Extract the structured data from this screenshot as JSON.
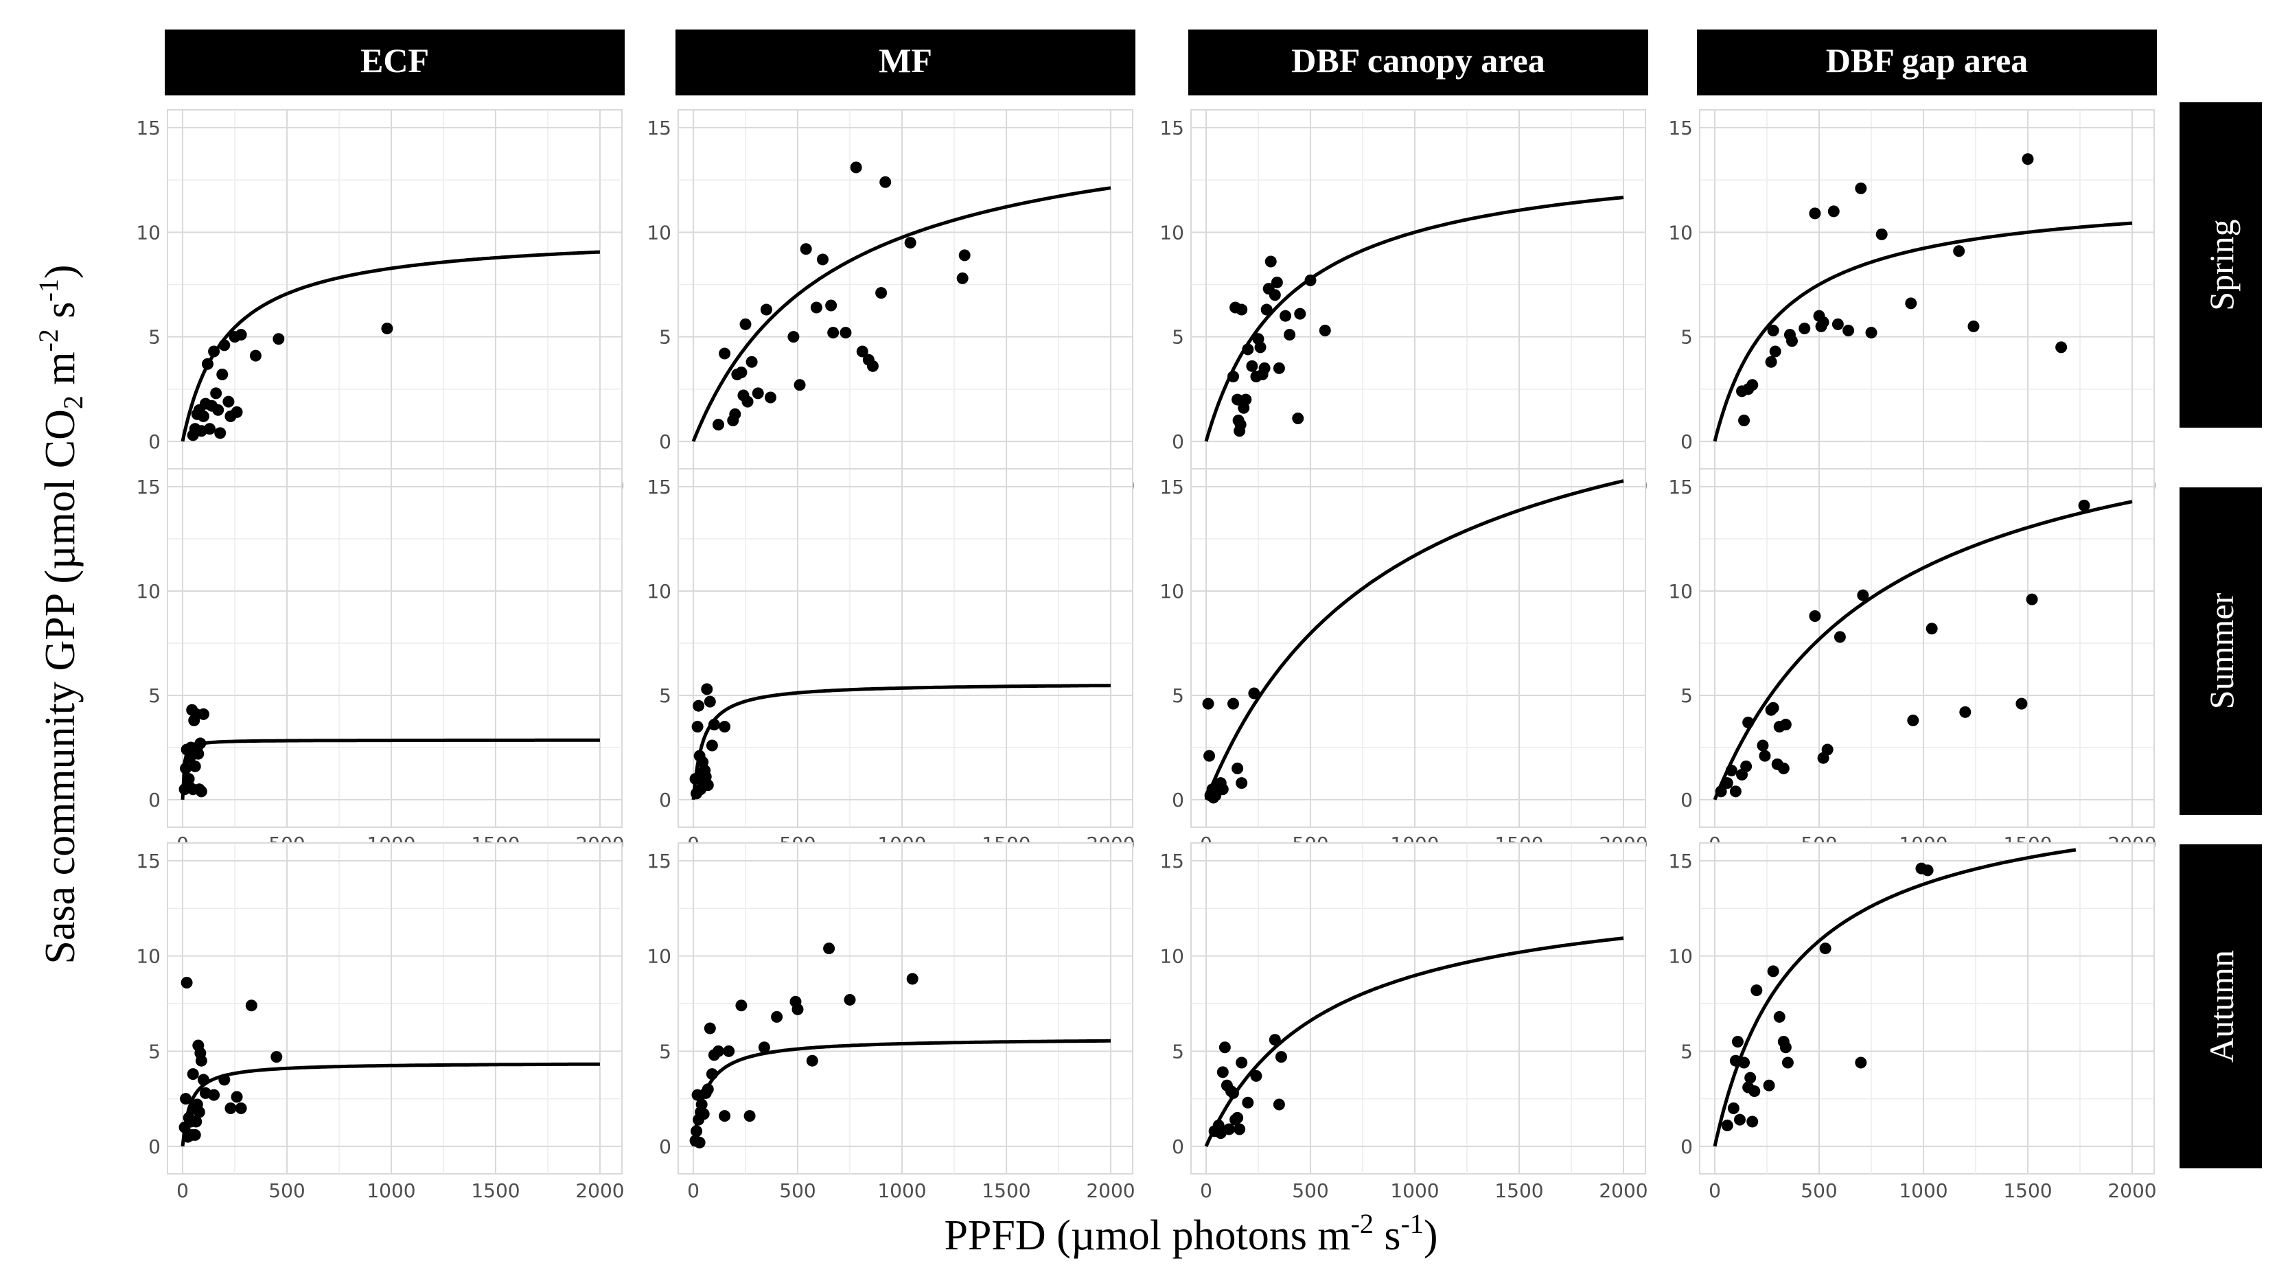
{
  "figure": {
    "y_axis_label": {
      "prefix": "Sasa community GPP (µmol CO",
      "sub": "2",
      "mid1": " m",
      "sup1": "-2",
      "mid2": " s",
      "sup2": "-1",
      "suffix": ")"
    },
    "x_axis_label": {
      "prefix": "PPFD (µmol photons m",
      "sup1": "-2",
      "mid": " s",
      "sup2": "-1",
      "suffix": ")"
    },
    "column_labels": [
      "ECF",
      "MF",
      "DBF canopy area",
      "DBF gap area"
    ],
    "row_labels": [
      "Spring",
      "Summer",
      "Autumn"
    ],
    "x_ticks": [
      "0",
      "500",
      "1000",
      "1500",
      "2000"
    ],
    "y_ticks": [
      "0",
      "5",
      "10",
      "15"
    ],
    "strip_color": "#000000",
    "grid_color": "#d9d9d9",
    "point_color": "#000000",
    "curve_color": "#000000"
  },
  "chart_data": [
    {
      "type": "scatter",
      "row": "Spring",
      "column": "ECF",
      "xlim": [
        0,
        2000
      ],
      "ylim": [
        0,
        15
      ],
      "curve_x_max": 2000,
      "fit": {
        "a": 0.048,
        "pmax": 10.0
      },
      "points": [
        [
          50,
          0.3
        ],
        [
          60,
          0.6
        ],
        [
          70,
          1.3
        ],
        [
          80,
          1.5
        ],
        [
          90,
          0.5
        ],
        [
          100,
          1.2
        ],
        [
          110,
          1.8
        ],
        [
          120,
          3.7
        ],
        [
          130,
          0.6
        ],
        [
          140,
          1.7
        ],
        [
          150,
          4.3
        ],
        [
          160,
          2.3
        ],
        [
          170,
          1.5
        ],
        [
          180,
          0.4
        ],
        [
          190,
          3.2
        ],
        [
          200,
          4.6
        ],
        [
          220,
          1.9
        ],
        [
          230,
          1.2
        ],
        [
          250,
          5.0
        ],
        [
          260,
          1.4
        ],
        [
          280,
          5.1
        ],
        [
          350,
          4.1
        ],
        [
          460,
          4.9
        ],
        [
          980,
          5.4
        ]
      ]
    },
    {
      "type": "scatter",
      "row": "Spring",
      "column": "MF",
      "xlim": [
        0,
        2000
      ],
      "ylim": [
        0,
        15
      ],
      "curve_x_max": 2000,
      "fit": {
        "a": 0.025,
        "pmax": 16.0
      },
      "points": [
        [
          120,
          0.8
        ],
        [
          150,
          4.2
        ],
        [
          190,
          1.0
        ],
        [
          200,
          1.3
        ],
        [
          210,
          3.2
        ],
        [
          230,
          3.3
        ],
        [
          240,
          2.2
        ],
        [
          250,
          5.6
        ],
        [
          260,
          1.9
        ],
        [
          280,
          3.8
        ],
        [
          310,
          2.3
        ],
        [
          350,
          6.3
        ],
        [
          370,
          2.1
        ],
        [
          480,
          5.0
        ],
        [
          510,
          2.7
        ],
        [
          540,
          9.2
        ],
        [
          590,
          6.4
        ],
        [
          620,
          8.7
        ],
        [
          660,
          6.5
        ],
        [
          670,
          5.2
        ],
        [
          730,
          5.2
        ],
        [
          780,
          13.1
        ],
        [
          810,
          4.3
        ],
        [
          840,
          3.9
        ],
        [
          860,
          3.6
        ],
        [
          900,
          7.1
        ],
        [
          920,
          12.4
        ],
        [
          1040,
          9.5
        ],
        [
          1290,
          7.8
        ],
        [
          1300,
          8.9
        ]
      ]
    },
    {
      "type": "scatter",
      "row": "Spring",
      "column": "DBF canopy area",
      "xlim": [
        0,
        2000
      ],
      "ylim": [
        0,
        15
      ],
      "curve_x_max": 2000,
      "fit": {
        "a": 0.035,
        "pmax": 14.0
      },
      "points": [
        [
          130,
          3.1
        ],
        [
          140,
          6.4
        ],
        [
          150,
          2.0
        ],
        [
          155,
          1.0
        ],
        [
          160,
          0.5
        ],
        [
          165,
          0.8
        ],
        [
          170,
          6.3
        ],
        [
          180,
          1.6
        ],
        [
          190,
          2.0
        ],
        [
          200,
          4.4
        ],
        [
          220,
          3.6
        ],
        [
          240,
          3.1
        ],
        [
          250,
          4.9
        ],
        [
          260,
          4.5
        ],
        [
          270,
          3.2
        ],
        [
          280,
          3.5
        ],
        [
          290,
          6.3
        ],
        [
          300,
          7.3
        ],
        [
          310,
          8.6
        ],
        [
          330,
          7.0
        ],
        [
          340,
          7.6
        ],
        [
          350,
          3.5
        ],
        [
          380,
          6.0
        ],
        [
          400,
          5.1
        ],
        [
          440,
          1.1
        ],
        [
          450,
          6.1
        ],
        [
          500,
          7.7
        ],
        [
          570,
          5.3
        ]
      ]
    },
    {
      "type": "scatter",
      "row": "Spring",
      "column": "DBF gap area",
      "xlim": [
        0,
        2000
      ],
      "ylim": [
        0,
        15
      ],
      "curve_x_max": 2000,
      "fit": {
        "a": 0.04,
        "pmax": 12.0
      },
      "points": [
        [
          130,
          2.4
        ],
        [
          140,
          1.0
        ],
        [
          160,
          2.5
        ],
        [
          180,
          2.7
        ],
        [
          270,
          3.8
        ],
        [
          280,
          5.3
        ],
        [
          290,
          4.3
        ],
        [
          360,
          5.1
        ],
        [
          370,
          4.8
        ],
        [
          430,
          5.4
        ],
        [
          480,
          10.9
        ],
        [
          500,
          6.0
        ],
        [
          510,
          5.5
        ],
        [
          520,
          5.7
        ],
        [
          570,
          11.0
        ],
        [
          590,
          5.6
        ],
        [
          640,
          5.3
        ],
        [
          700,
          12.1
        ],
        [
          750,
          5.2
        ],
        [
          800,
          9.9
        ],
        [
          940,
          6.6
        ],
        [
          1170,
          9.1
        ],
        [
          1240,
          5.5
        ],
        [
          1500,
          13.5
        ],
        [
          1660,
          4.5
        ]
      ]
    },
    {
      "type": "scatter",
      "row": "Summer",
      "column": "ECF",
      "xlim": [
        0,
        2000
      ],
      "ylim": [
        0,
        15
      ],
      "curve_x_max": 2000,
      "fit": {
        "a": 0.5,
        "pmax": 2.86
      },
      "points": [
        [
          10,
          0.5
        ],
        [
          15,
          1.5
        ],
        [
          20,
          2.4
        ],
        [
          25,
          0.8
        ],
        [
          30,
          1.0
        ],
        [
          35,
          2.0
        ],
        [
          40,
          2.5
        ],
        [
          45,
          4.3
        ],
        [
          50,
          0.5
        ],
        [
          55,
          3.8
        ],
        [
          60,
          1.6
        ],
        [
          65,
          4.1
        ],
        [
          70,
          2.5
        ],
        [
          75,
          2.2
        ],
        [
          80,
          0.5
        ],
        [
          85,
          2.7
        ],
        [
          90,
          0.4
        ],
        [
          100,
          4.1
        ]
      ]
    },
    {
      "type": "scatter",
      "row": "Summer",
      "column": "MF",
      "xlim": [
        0,
        2000
      ],
      "ylim": [
        0,
        15
      ],
      "curve_x_max": 2000,
      "fit": {
        "a": 0.12,
        "pmax": 5.6
      },
      "points": [
        [
          10,
          1.0
        ],
        [
          15,
          0.3
        ],
        [
          20,
          3.5
        ],
        [
          25,
          4.5
        ],
        [
          30,
          2.1
        ],
        [
          35,
          0.5
        ],
        [
          40,
          1.3
        ],
        [
          45,
          1.8
        ],
        [
          50,
          0.8
        ],
        [
          55,
          1.4
        ],
        [
          60,
          1.1
        ],
        [
          65,
          5.3
        ],
        [
          70,
          0.7
        ],
        [
          80,
          4.7
        ],
        [
          90,
          2.6
        ],
        [
          100,
          3.6
        ],
        [
          150,
          3.5
        ]
      ]
    },
    {
      "type": "scatter",
      "row": "Summer",
      "column": "DBF canopy area",
      "xlim": [
        0,
        2000
      ],
      "ylim": [
        0,
        15
      ],
      "curve_x_max": 2000,
      "fit": {
        "a": 0.025,
        "pmax": 22.0
      },
      "points": [
        [
          10,
          4.6
        ],
        [
          15,
          2.1
        ],
        [
          20,
          0.2
        ],
        [
          25,
          0.3
        ],
        [
          30,
          0.5
        ],
        [
          35,
          0.1
        ],
        [
          40,
          0.4
        ],
        [
          45,
          0.2
        ],
        [
          50,
          0.6
        ],
        [
          60,
          0.7
        ],
        [
          70,
          0.8
        ],
        [
          80,
          0.5
        ],
        [
          130,
          4.6
        ],
        [
          150,
          1.5
        ],
        [
          170,
          0.8
        ],
        [
          230,
          5.1
        ]
      ]
    },
    {
      "type": "scatter",
      "row": "Summer",
      "column": "DBF gap area",
      "xlim": [
        0,
        2000
      ],
      "ylim": [
        0,
        15
      ],
      "curve_x_max": 2000,
      "fit": {
        "a": 0.025,
        "pmax": 20.0
      },
      "points": [
        [
          30,
          0.4
        ],
        [
          60,
          0.8
        ],
        [
          80,
          1.4
        ],
        [
          100,
          0.4
        ],
        [
          130,
          1.2
        ],
        [
          150,
          1.6
        ],
        [
          160,
          3.7
        ],
        [
          230,
          2.6
        ],
        [
          240,
          2.1
        ],
        [
          270,
          4.3
        ],
        [
          280,
          4.4
        ],
        [
          300,
          1.7
        ],
        [
          310,
          3.5
        ],
        [
          330,
          1.5
        ],
        [
          340,
          3.6
        ],
        [
          480,
          8.8
        ],
        [
          520,
          2.0
        ],
        [
          540,
          2.4
        ],
        [
          600,
          7.8
        ],
        [
          710,
          9.8
        ],
        [
          950,
          3.8
        ],
        [
          1040,
          8.2
        ],
        [
          1200,
          4.2
        ],
        [
          1470,
          4.6
        ],
        [
          1520,
          9.6
        ],
        [
          1770,
          14.1
        ]
      ]
    },
    {
      "type": "scatter",
      "row": "Autumn",
      "column": "ECF",
      "xlim": [
        0,
        2000
      ],
      "ylim": [
        0,
        15
      ],
      "curve_x_max": 2000,
      "fit": {
        "a": 0.12,
        "pmax": 4.4
      },
      "points": [
        [
          10,
          1.0
        ],
        [
          15,
          2.5
        ],
        [
          20,
          8.6
        ],
        [
          25,
          0.5
        ],
        [
          30,
          1.5
        ],
        [
          35,
          0.6
        ],
        [
          40,
          1.3
        ],
        [
          45,
          0.6
        ],
        [
          50,
          3.8
        ],
        [
          55,
          2.0
        ],
        [
          60,
          0.6
        ],
        [
          65,
          1.3
        ],
        [
          70,
          2.2
        ],
        [
          75,
          5.3
        ],
        [
          80,
          1.8
        ],
        [
          85,
          4.9
        ],
        [
          90,
          4.5
        ],
        [
          100,
          3.5
        ],
        [
          110,
          2.8
        ],
        [
          150,
          2.7
        ],
        [
          200,
          3.5
        ],
        [
          230,
          2.0
        ],
        [
          260,
          2.6
        ],
        [
          280,
          2.0
        ],
        [
          330,
          7.4
        ],
        [
          450,
          4.7
        ]
      ]
    },
    {
      "type": "scatter",
      "row": "Autumn",
      "column": "MF",
      "xlim": [
        0,
        2000
      ],
      "ylim": [
        0,
        15
      ],
      "curve_x_max": 2000,
      "fit": {
        "a": 0.1,
        "pmax": 5.7
      },
      "points": [
        [
          10,
          0.3
        ],
        [
          15,
          0.8
        ],
        [
          20,
          2.7
        ],
        [
          25,
          1.4
        ],
        [
          30,
          0.2
        ],
        [
          35,
          1.8
        ],
        [
          40,
          2.2
        ],
        [
          50,
          1.7
        ],
        [
          60,
          2.8
        ],
        [
          70,
          3.0
        ],
        [
          80,
          6.2
        ],
        [
          90,
          3.8
        ],
        [
          100,
          4.8
        ],
        [
          120,
          5.0
        ],
        [
          150,
          1.6
        ],
        [
          170,
          5.0
        ],
        [
          230,
          7.4
        ],
        [
          270,
          1.6
        ],
        [
          340,
          5.2
        ],
        [
          400,
          6.8
        ],
        [
          490,
          7.6
        ],
        [
          500,
          7.2
        ],
        [
          570,
          4.5
        ],
        [
          650,
          10.4
        ],
        [
          750,
          7.7
        ],
        [
          1050,
          8.8
        ]
      ]
    },
    {
      "type": "scatter",
      "row": "Autumn",
      "column": "DBF canopy area",
      "xlim": [
        0,
        2000
      ],
      "ylim": [
        0,
        15
      ],
      "curve_x_max": 2000,
      "fit": {
        "a": 0.025,
        "pmax": 14.0
      },
      "points": [
        [
          40,
          0.8
        ],
        [
          60,
          1.1
        ],
        [
          70,
          0.7
        ],
        [
          80,
          3.9
        ],
        [
          90,
          5.2
        ],
        [
          100,
          3.2
        ],
        [
          110,
          0.9
        ],
        [
          120,
          2.9
        ],
        [
          130,
          2.8
        ],
        [
          140,
          1.4
        ],
        [
          150,
          1.5
        ],
        [
          160,
          0.9
        ],
        [
          170,
          4.4
        ],
        [
          200,
          2.3
        ],
        [
          240,
          3.7
        ],
        [
          330,
          5.6
        ],
        [
          350,
          2.2
        ],
        [
          360,
          4.7
        ]
      ]
    },
    {
      "type": "scatter",
      "row": "Autumn",
      "column": "DBF gap area",
      "xlim": [
        0,
        2000
      ],
      "ylim": [
        0,
        15
      ],
      "curve_x_max": 1730,
      "fit": {
        "a": 0.05,
        "pmax": 19.0
      },
      "points": [
        [
          60,
          1.1
        ],
        [
          90,
          2.0
        ],
        [
          100,
          4.5
        ],
        [
          110,
          5.5
        ],
        [
          120,
          1.4
        ],
        [
          140,
          4.4
        ],
        [
          160,
          3.1
        ],
        [
          170,
          3.6
        ],
        [
          180,
          1.3
        ],
        [
          190,
          2.9
        ],
        [
          200,
          8.2
        ],
        [
          260,
          3.2
        ],
        [
          280,
          9.2
        ],
        [
          310,
          6.8
        ],
        [
          330,
          5.5
        ],
        [
          340,
          5.2
        ],
        [
          350,
          4.4
        ],
        [
          530,
          10.4
        ],
        [
          700,
          4.4
        ],
        [
          990,
          14.6
        ],
        [
          1020,
          14.5
        ]
      ]
    }
  ]
}
